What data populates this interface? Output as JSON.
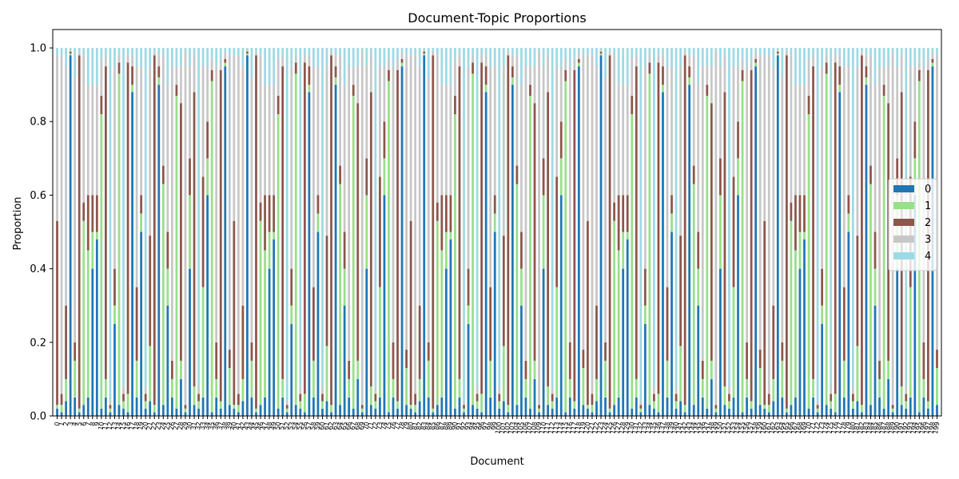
{
  "chart_data": {
    "type": "bar",
    "stacked": true,
    "title": "Document-Topic Proportions",
    "xlabel": "Document",
    "ylabel": "Proportion",
    "ylim": [
      0,
      1.05
    ],
    "yticks": [
      "0.0",
      "0.2",
      "0.4",
      "0.6",
      "0.8",
      "1.0"
    ],
    "grid": false,
    "legend_position": "center-right",
    "document_count": 200,
    "series": [
      {
        "name": "0",
        "color": "#1f77b4"
      },
      {
        "name": "1",
        "color": "#98df8a"
      },
      {
        "name": "2",
        "color": "#8c564b"
      },
      {
        "name": "3",
        "color": "#c7c7c7"
      },
      {
        "name": "4",
        "color": "#9edae5"
      }
    ],
    "documents": [
      {
        "values": [
          0.02,
          0.01,
          0.5,
          0.45,
          0.02
        ]
      },
      {
        "values": [
          0.01,
          0.02,
          0.03,
          0.92,
          0.02
        ]
      },
      {
        "values": [
          0.04,
          0.06,
          0.2,
          0.65,
          0.05
        ]
      },
      {
        "values": [
          0.98,
          0.005,
          0.005,
          0.005,
          0.005
        ]
      },
      {
        "values": [
          0.05,
          0.1,
          0.05,
          0.72,
          0.08
        ]
      },
      {
        "values": [
          0.01,
          0.01,
          0.96,
          0.01,
          0.01
        ]
      },
      {
        "values": [
          0.03,
          0.5,
          0.05,
          0.4,
          0.02
        ]
      },
      {
        "values": [
          0.05,
          0.4,
          0.15,
          0.3,
          0.1
        ]
      },
      {
        "values": [
          0.4,
          0.1,
          0.1,
          0.3,
          0.1
        ]
      },
      {
        "values": [
          0.48,
          0.02,
          0.1,
          0.3,
          0.1
        ]
      },
      {
        "values": [
          0.02,
          0.8,
          0.05,
          0.1,
          0.03
        ]
      },
      {
        "values": [
          0.05,
          0.05,
          0.85,
          0.03,
          0.02
        ]
      },
      {
        "values": [
          0.01,
          0.01,
          0.01,
          0.01,
          0.96
        ]
      },
      {
        "values": [
          0.25,
          0.05,
          0.1,
          0.55,
          0.05
        ]
      },
      {
        "values": [
          0.03,
          0.9,
          0.03,
          0.02,
          0.02
        ]
      },
      {
        "values": [
          0.02,
          0.02,
          0.02,
          0.02,
          0.92
        ]
      },
      {
        "values": [
          0.01,
          0.05,
          0.9,
          0.02,
          0.02
        ]
      },
      {
        "values": [
          0.88,
          0.02,
          0.05,
          0.03,
          0.02
        ]
      },
      {
        "values": [
          0.05,
          0.1,
          0.2,
          0.6,
          0.05
        ]
      },
      {
        "values": [
          0.5,
          0.05,
          0.05,
          0.35,
          0.05
        ]
      },
      {
        "values": [
          0.02,
          0.02,
          0.02,
          0.02,
          0.92
        ]
      },
      {
        "values": [
          0.04,
          0.15,
          0.3,
          0.46,
          0.05
        ]
      },
      {
        "values": [
          0.01,
          0.02,
          0.95,
          0.01,
          0.01
        ]
      },
      {
        "values": [
          0.9,
          0.02,
          0.03,
          0.03,
          0.02
        ]
      },
      {
        "values": [
          0.03,
          0.6,
          0.05,
          0.3,
          0.02
        ]
      },
      {
        "values": [
          0.3,
          0.1,
          0.1,
          0.4,
          0.1
        ]
      },
      {
        "values": [
          0.05,
          0.05,
          0.05,
          0.8,
          0.05
        ]
      },
      {
        "values": [
          0.02,
          0.85,
          0.03,
          0.05,
          0.05
        ]
      },
      {
        "values": [
          0.1,
          0.05,
          0.7,
          0.1,
          0.05
        ]
      },
      {
        "values": [
          0.01,
          0.01,
          0.01,
          0.96,
          0.01
        ]
      },
      {
        "values": [
          0.4,
          0.2,
          0.1,
          0.25,
          0.05
        ]
      },
      {
        "values": [
          0.03,
          0.05,
          0.8,
          0.1,
          0.02
        ]
      },
      {
        "values": [
          0.02,
          0.02,
          0.02,
          0.02,
          0.92
        ]
      },
      {
        "values": [
          0.05,
          0.3,
          0.3,
          0.3,
          0.05
        ]
      },
      {
        "values": [
          0.6,
          0.1,
          0.1,
          0.15,
          0.05
        ]
      },
      {
        "values": [
          0.01,
          0.9,
          0.03,
          0.03,
          0.03
        ]
      },
      {
        "values": [
          0.05,
          0.05,
          0.1,
          0.75,
          0.05
        ]
      },
      {
        "values": [
          0.02,
          0.02,
          0.9,
          0.03,
          0.03
        ]
      },
      {
        "values": [
          0.95,
          0.01,
          0.01,
          0.02,
          0.01
        ]
      },
      {
        "values": [
          0.03,
          0.1,
          0.05,
          0.8,
          0.02
        ]
      }
    ]
  }
}
